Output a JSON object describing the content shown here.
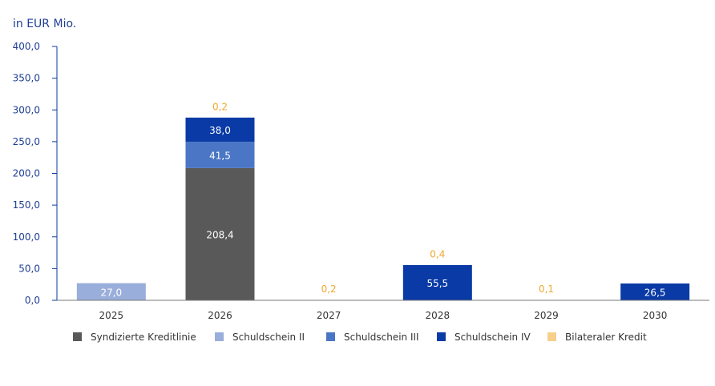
{
  "chart_data": {
    "type": "bar",
    "stacked": true,
    "ylabel": "in EUR Mio.",
    "ylim": [
      0,
      400
    ],
    "yticks": [
      "0,0",
      "50,0",
      "100,0",
      "150,0",
      "200,0",
      "250,0",
      "300,0",
      "350,0",
      "400,0"
    ],
    "categories": [
      "2025",
      "2026",
      "2027",
      "2028",
      "2029",
      "2030"
    ],
    "series": [
      {
        "name": "Syndizierte Kreditlinie",
        "color": "#595959",
        "label_color": "#ffffff",
        "values": [
          0,
          208.4,
          0,
          0,
          0,
          0
        ],
        "labels": [
          "",
          "208,4",
          "",
          "",
          "",
          ""
        ]
      },
      {
        "name": "Schuldschein II",
        "color": "#9aaedb",
        "label_color": "#ffffff",
        "values": [
          27.0,
          0,
          0,
          0,
          0,
          0
        ],
        "labels": [
          "27,0",
          "",
          "",
          "",
          "",
          ""
        ]
      },
      {
        "name": "Schuldschein III",
        "color": "#4a76c5",
        "label_color": "#ffffff",
        "values": [
          0,
          41.5,
          0,
          0,
          0,
          0
        ],
        "labels": [
          "",
          "41,5",
          "",
          "",
          "",
          ""
        ]
      },
      {
        "name": "Schuldschein IV",
        "color": "#0a3aa5",
        "label_color": "#ffffff",
        "values": [
          0,
          38.0,
          0,
          55.5,
          0,
          26.5
        ],
        "labels": [
          "",
          "38,0",
          "",
          "55,5",
          "",
          "26,5"
        ]
      },
      {
        "name": "Bilateraler Kredit",
        "color": "#f6d08a",
        "label_color": "#f0a830",
        "values": [
          0,
          0.2,
          0.2,
          0.4,
          0.1,
          0
        ],
        "labels": [
          "",
          "0,2",
          "0,2",
          "0,4",
          "0,1",
          ""
        ]
      }
    ],
    "legend_position": "bottom",
    "grid": false,
    "axis_color": "#0a3aa5",
    "tick_label_color": "#1f3f93",
    "category_label_color": "#333333"
  }
}
